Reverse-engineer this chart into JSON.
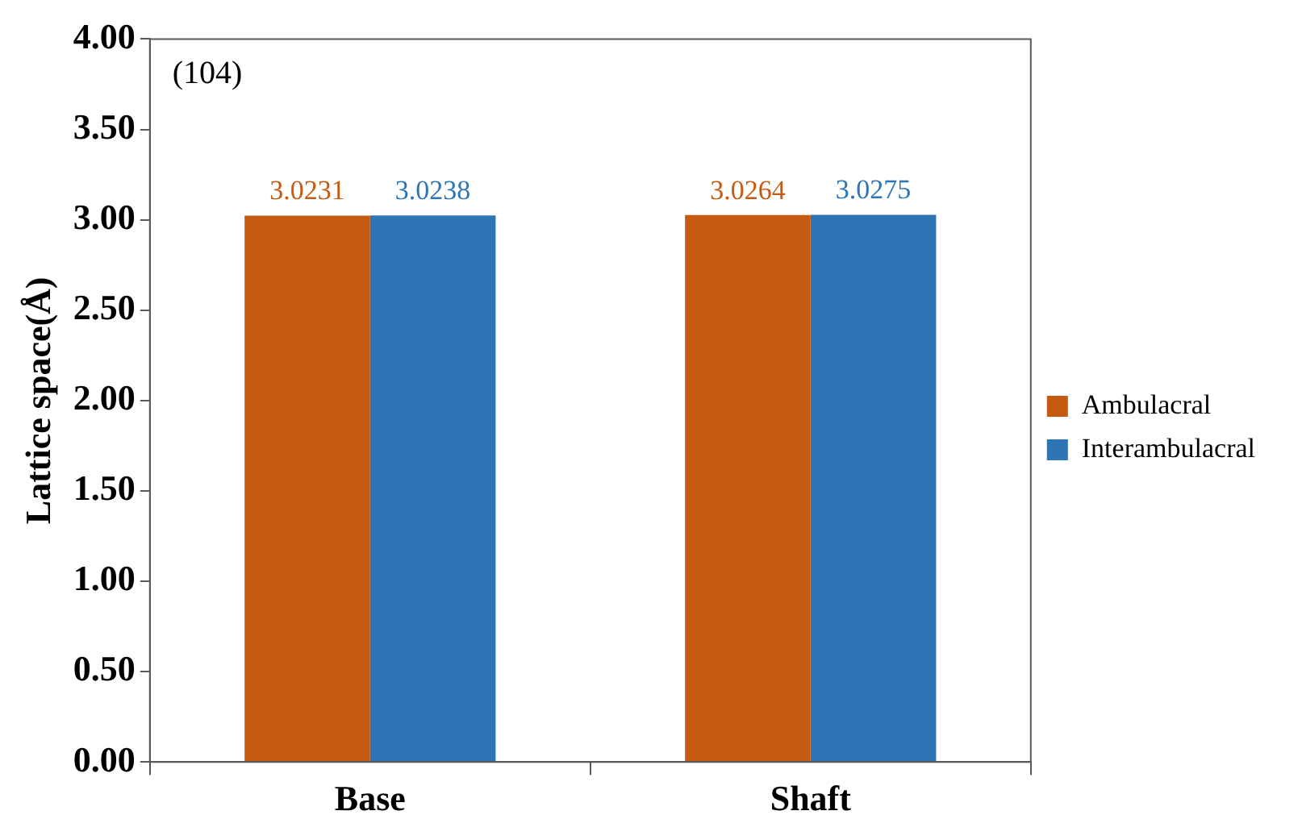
{
  "chart_data": {
    "type": "bar",
    "ylabel": "Lattice space(Å)",
    "annotations": [
      "(104)"
    ],
    "categories": [
      "Base",
      "Shaft"
    ],
    "series": [
      {
        "name": "Ambulacral",
        "color": "#c55a11",
        "values": [
          3.0231,
          3.0264
        ]
      },
      {
        "name": "Interambulacral",
        "color": "#2e75b6",
        "values": [
          3.0238,
          3.0275
        ]
      }
    ],
    "ylim": [
      0,
      4
    ],
    "yticks": [
      {
        "value": 0,
        "label": "0.00"
      },
      {
        "value": 0.5,
        "label": "0.50"
      },
      {
        "value": 1,
        "label": "1.00"
      },
      {
        "value": 1.5,
        "label": "1.50"
      },
      {
        "value": 2,
        "label": "2.00"
      },
      {
        "value": 2.5,
        "label": "2.50"
      },
      {
        "value": 3,
        "label": "3.00"
      },
      {
        "value": 3.5,
        "label": "3.50"
      },
      {
        "value": 4,
        "label": "4.00"
      }
    ],
    "grid": false,
    "legend": "right",
    "data_labels": true
  }
}
